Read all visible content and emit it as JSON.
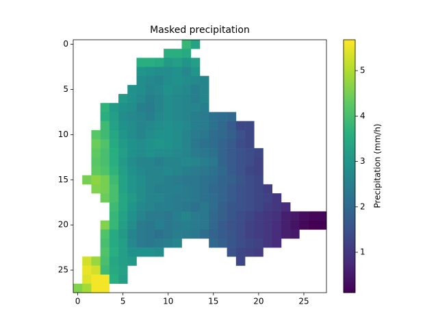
{
  "chart_data": {
    "type": "heatmap",
    "title": "Masked precipitation",
    "colorbar_label": "Precipitation (mm/h)",
    "colormap": "viridis",
    "xlim": [
      -0.5,
      27.5
    ],
    "ylim": [
      27.5,
      -0.5
    ],
    "xticks": [
      0,
      5,
      10,
      15,
      20,
      25
    ],
    "yticks": [
      0,
      5,
      10,
      15,
      20,
      25
    ],
    "clim": [
      0.11,
      5.68
    ],
    "cticks": [
      1,
      2,
      3,
      4,
      5
    ],
    "z": [
      [
        null,
        null,
        null,
        null,
        null,
        null,
        null,
        null,
        null,
        null,
        null,
        null,
        3.8,
        3.3,
        null,
        null,
        null,
        null,
        null,
        null,
        null,
        null,
        null,
        null,
        null,
        null,
        null,
        null
      ],
      [
        null,
        null,
        null,
        null,
        null,
        null,
        null,
        null,
        null,
        null,
        3.6,
        3.6,
        3.5,
        null,
        null,
        null,
        null,
        null,
        null,
        null,
        null,
        null,
        null,
        null,
        null,
        null,
        null,
        null
      ],
      [
        null,
        null,
        null,
        null,
        null,
        null,
        null,
        3.6,
        3.6,
        3.5,
        3.1,
        3.2,
        3.0,
        3.2,
        null,
        null,
        null,
        null,
        null,
        null,
        null,
        null,
        null,
        null,
        null,
        null,
        null,
        null
      ],
      [
        null,
        null,
        null,
        null,
        null,
        null,
        null,
        3.0,
        2.9,
        2.8,
        2.8,
        2.9,
        2.7,
        3.0,
        null,
        null,
        null,
        null,
        null,
        null,
        null,
        null,
        null,
        null,
        null,
        null,
        null,
        null
      ],
      [
        null,
        null,
        null,
        null,
        null,
        null,
        null,
        2.8,
        2.7,
        2.6,
        2.8,
        2.9,
        2.8,
        2.7,
        2.6,
        null,
        null,
        null,
        null,
        null,
        null,
        null,
        null,
        null,
        null,
        null,
        null,
        null
      ],
      [
        null,
        null,
        null,
        null,
        null,
        null,
        2.9,
        2.8,
        2.6,
        2.7,
        2.9,
        2.8,
        2.7,
        2.5,
        2.6,
        null,
        null,
        null,
        null,
        null,
        null,
        null,
        null,
        null,
        null,
        null,
        null,
        null
      ],
      [
        null,
        null,
        null,
        null,
        null,
        3.1,
        2.9,
        2.7,
        2.5,
        2.6,
        2.8,
        2.7,
        2.6,
        2.5,
        2.6,
        null,
        null,
        null,
        null,
        null,
        null,
        null,
        null,
        null,
        null,
        null,
        null,
        null
      ],
      [
        null,
        null,
        null,
        3.7,
        3.1,
        2.9,
        2.8,
        2.5,
        2.4,
        2.6,
        2.8,
        2.7,
        2.6,
        2.6,
        2.5,
        null,
        null,
        null,
        null,
        null,
        null,
        null,
        null,
        null,
        null,
        null,
        null,
        null
      ],
      [
        null,
        null,
        null,
        3.6,
        3.2,
        2.8,
        2.7,
        2.6,
        2.5,
        2.7,
        2.8,
        2.7,
        2.6,
        2.5,
        2.4,
        2.2,
        2.1,
        2.0,
        null,
        null,
        null,
        null,
        null,
        null,
        null,
        null,
        null,
        null
      ],
      [
        null,
        null,
        null,
        3.9,
        3.3,
        2.9,
        2.8,
        2.6,
        2.7,
        2.8,
        2.9,
        2.8,
        2.7,
        2.5,
        2.4,
        2.2,
        2.0,
        1.7,
        1.3,
        1.3,
        null,
        null,
        null,
        null,
        null,
        null,
        null,
        null
      ],
      [
        null,
        null,
        4.2,
        3.9,
        3.4,
        3.0,
        2.8,
        2.6,
        2.8,
        2.9,
        2.9,
        2.8,
        2.6,
        2.4,
        2.3,
        2.1,
        2.0,
        1.8,
        1.5,
        1.3,
        null,
        null,
        null,
        null,
        null,
        null,
        null,
        null
      ],
      [
        null,
        null,
        4.4,
        4.1,
        3.5,
        3.1,
        2.9,
        2.8,
        2.9,
        3.0,
        2.9,
        2.8,
        2.6,
        2.3,
        2.2,
        2.1,
        1.9,
        1.7,
        1.4,
        1.3,
        null,
        null,
        null,
        null,
        null,
        null,
        null,
        null
      ],
      [
        null,
        null,
        4.3,
        4.0,
        3.6,
        3.2,
        2.9,
        2.8,
        2.9,
        2.8,
        2.8,
        2.7,
        2.6,
        2.4,
        2.3,
        2.2,
        1.9,
        1.7,
        1.5,
        1.4,
        1.3,
        null,
        null,
        null,
        null,
        null,
        null,
        null
      ],
      [
        null,
        null,
        4.2,
        4.0,
        3.6,
        3.1,
        2.8,
        2.6,
        2.6,
        2.5,
        2.6,
        2.6,
        2.7,
        2.6,
        2.5,
        2.3,
        1.9,
        1.7,
        1.5,
        1.4,
        1.2,
        null,
        null,
        null,
        null,
        null,
        null,
        null
      ],
      [
        null,
        null,
        4.3,
        4.1,
        3.7,
        3.2,
        2.9,
        2.7,
        2.6,
        2.6,
        2.7,
        2.6,
        2.5,
        2.4,
        2.3,
        2.2,
        2.0,
        1.7,
        1.5,
        1.3,
        1.2,
        null,
        null,
        null,
        null,
        null,
        null,
        null
      ],
      [
        null,
        4.5,
        4.7,
        4.5,
        3.9,
        3.3,
        3.0,
        2.8,
        2.6,
        2.6,
        2.5,
        2.4,
        2.3,
        2.3,
        2.2,
        2.1,
        1.9,
        1.8,
        1.6,
        1.4,
        1.3,
        null,
        null,
        null,
        null,
        null,
        null,
        null
      ],
      [
        null,
        null,
        4.6,
        4.5,
        4.0,
        3.3,
        3.0,
        2.8,
        2.6,
        2.5,
        2.5,
        2.5,
        2.4,
        2.3,
        2.2,
        2.0,
        1.9,
        1.7,
        1.5,
        1.4,
        1.3,
        1.1,
        null,
        null,
        null,
        null,
        null,
        null
      ],
      [
        null,
        null,
        null,
        4.4,
        4.0,
        3.4,
        3.1,
        2.8,
        2.6,
        2.6,
        2.5,
        2.4,
        2.4,
        2.3,
        2.2,
        2.1,
        1.9,
        1.7,
        1.5,
        1.4,
        1.3,
        1.2,
        1.0,
        null,
        null,
        null,
        null,
        null
      ],
      [
        null,
        null,
        null,
        null,
        3.9,
        3.4,
        3.0,
        2.7,
        2.6,
        2.5,
        2.5,
        2.4,
        2.3,
        2.2,
        2.3,
        2.1,
        1.8,
        1.6,
        1.5,
        1.4,
        1.3,
        1.1,
        1.0,
        0.8,
        null,
        null,
        null,
        null
      ],
      [
        null,
        null,
        null,
        null,
        3.8,
        3.3,
        2.9,
        2.6,
        2.4,
        2.4,
        2.3,
        2.5,
        2.6,
        2.4,
        2.3,
        2.0,
        1.8,
        1.6,
        1.4,
        1.3,
        1.1,
        1.0,
        0.9,
        0.6,
        0.5,
        0.3,
        0.2,
        0.2
      ],
      [
        null,
        null,
        null,
        4.6,
        3.8,
        3.2,
        2.8,
        2.4,
        2.3,
        2.5,
        2.3,
        2.4,
        2.5,
        2.4,
        2.3,
        2.0,
        1.7,
        1.5,
        1.4,
        1.2,
        1.1,
        1.0,
        0.8,
        0.6,
        0.4,
        0.2,
        0.1,
        0.1
      ],
      [
        null,
        null,
        null,
        4.1,
        3.5,
        3.1,
        2.6,
        2.4,
        2.3,
        2.2,
        2.3,
        2.5,
        2.4,
        2.3,
        2.1,
        1.9,
        1.7,
        1.6,
        1.4,
        1.2,
        1.1,
        1.0,
        0.8,
        0.6,
        0.5,
        null,
        null,
        null
      ],
      [
        null,
        null,
        null,
        4.0,
        3.5,
        3.2,
        2.7,
        2.4,
        2.3,
        2.4,
        2.5,
        2.6,
        null,
        null,
        null,
        2.0,
        1.8,
        1.6,
        1.4,
        1.3,
        1.2,
        1.0,
        0.8,
        null,
        null,
        null,
        null,
        null
      ],
      [
        null,
        null,
        null,
        4.1,
        3.6,
        3.2,
        2.9,
        2.9,
        2.9,
        2.8,
        null,
        null,
        null,
        null,
        null,
        null,
        null,
        1.5,
        1.3,
        1.2,
        1.1,
        null,
        null,
        null,
        null,
        null,
        null,
        null
      ],
      [
        null,
        5.3,
        4.8,
        4.0,
        3.4,
        3.2,
        3.1,
        null,
        null,
        null,
        null,
        null,
        null,
        null,
        null,
        null,
        null,
        null,
        1.3,
        null,
        null,
        null,
        null,
        null,
        null,
        null,
        null,
        null
      ],
      [
        null,
        5.5,
        5.3,
        3.9,
        3.5,
        3.3,
        null,
        null,
        null,
        null,
        null,
        null,
        null,
        null,
        null,
        null,
        null,
        null,
        null,
        null,
        null,
        null,
        null,
        null,
        null,
        null,
        null,
        null
      ],
      [
        null,
        5.4,
        5.6,
        5.6,
        3.6,
        3.2,
        null,
        null,
        null,
        null,
        null,
        null,
        null,
        null,
        null,
        null,
        null,
        null,
        null,
        null,
        null,
        null,
        null,
        null,
        null,
        null,
        null,
        null
      ],
      [
        4.6,
        4.9,
        5.6,
        5.6,
        null,
        null,
        null,
        null,
        null,
        null,
        null,
        null,
        null,
        null,
        null,
        null,
        null,
        null,
        null,
        null,
        null,
        null,
        null,
        null,
        null,
        null,
        null,
        null
      ]
    ]
  }
}
